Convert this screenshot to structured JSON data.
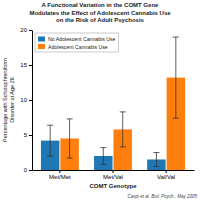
{
  "chart_data": {
    "type": "bar",
    "title": "A Functional Variation in the COMT Gene\nModulates the Effect of Adolescent Cannabis Use\non the Risk of Adult Psychosis",
    "xlabel": "COMT Genotype",
    "ylabel": "Percentage with Schizophreniform\nDisorder at Age 26",
    "categories": [
      "Met/Met",
      "Met/Val",
      "Val/Val"
    ],
    "series": [
      {
        "name": "No Adolescent Cannabis Use",
        "values": [
          4.2,
          2.0,
          1.5
        ],
        "errors": [
          2.2,
          1.2,
          1.0
        ]
      },
      {
        "name": "Adolescent Cannabis Use",
        "values": [
          4.5,
          5.8,
          13.2
        ],
        "errors": [
          2.8,
          2.5,
          5.8
        ]
      }
    ],
    "ylim": [
      0,
      20
    ],
    "yticks": [
      0,
      5,
      10,
      15,
      20
    ],
    "legend": "upper left",
    "annotations": [
      "Caspi et al. Biol. Psych., May 2005"
    ]
  }
}
